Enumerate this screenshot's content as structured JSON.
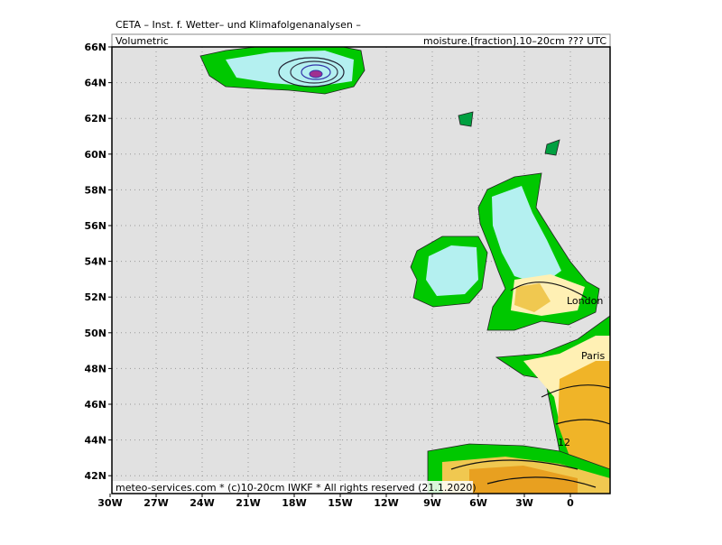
{
  "header": {
    "title": "CETA – Inst. f. Wetter– und Klimafolgenanalysen –",
    "left": "Volumetric",
    "right": "moisture.[fraction].10–20cm ??? UTC"
  },
  "footer": "meteo-services.com * (c)10-20cm IWKF * All rights reserved (21.1.2020)",
  "lat_labels": [
    "66N",
    "64N",
    "62N",
    "60N",
    "58N",
    "56N",
    "54N",
    "52N",
    "50N",
    "48N",
    "46N",
    "44N",
    "42N"
  ],
  "lon_labels": [
    "30W",
    "27W",
    "24W",
    "21W",
    "18W",
    "15W",
    "12W",
    "9W",
    "6W",
    "3W",
    "0"
  ],
  "map_labels": {
    "london": "London",
    "paris": "Paris",
    "contour": "12"
  }
}
